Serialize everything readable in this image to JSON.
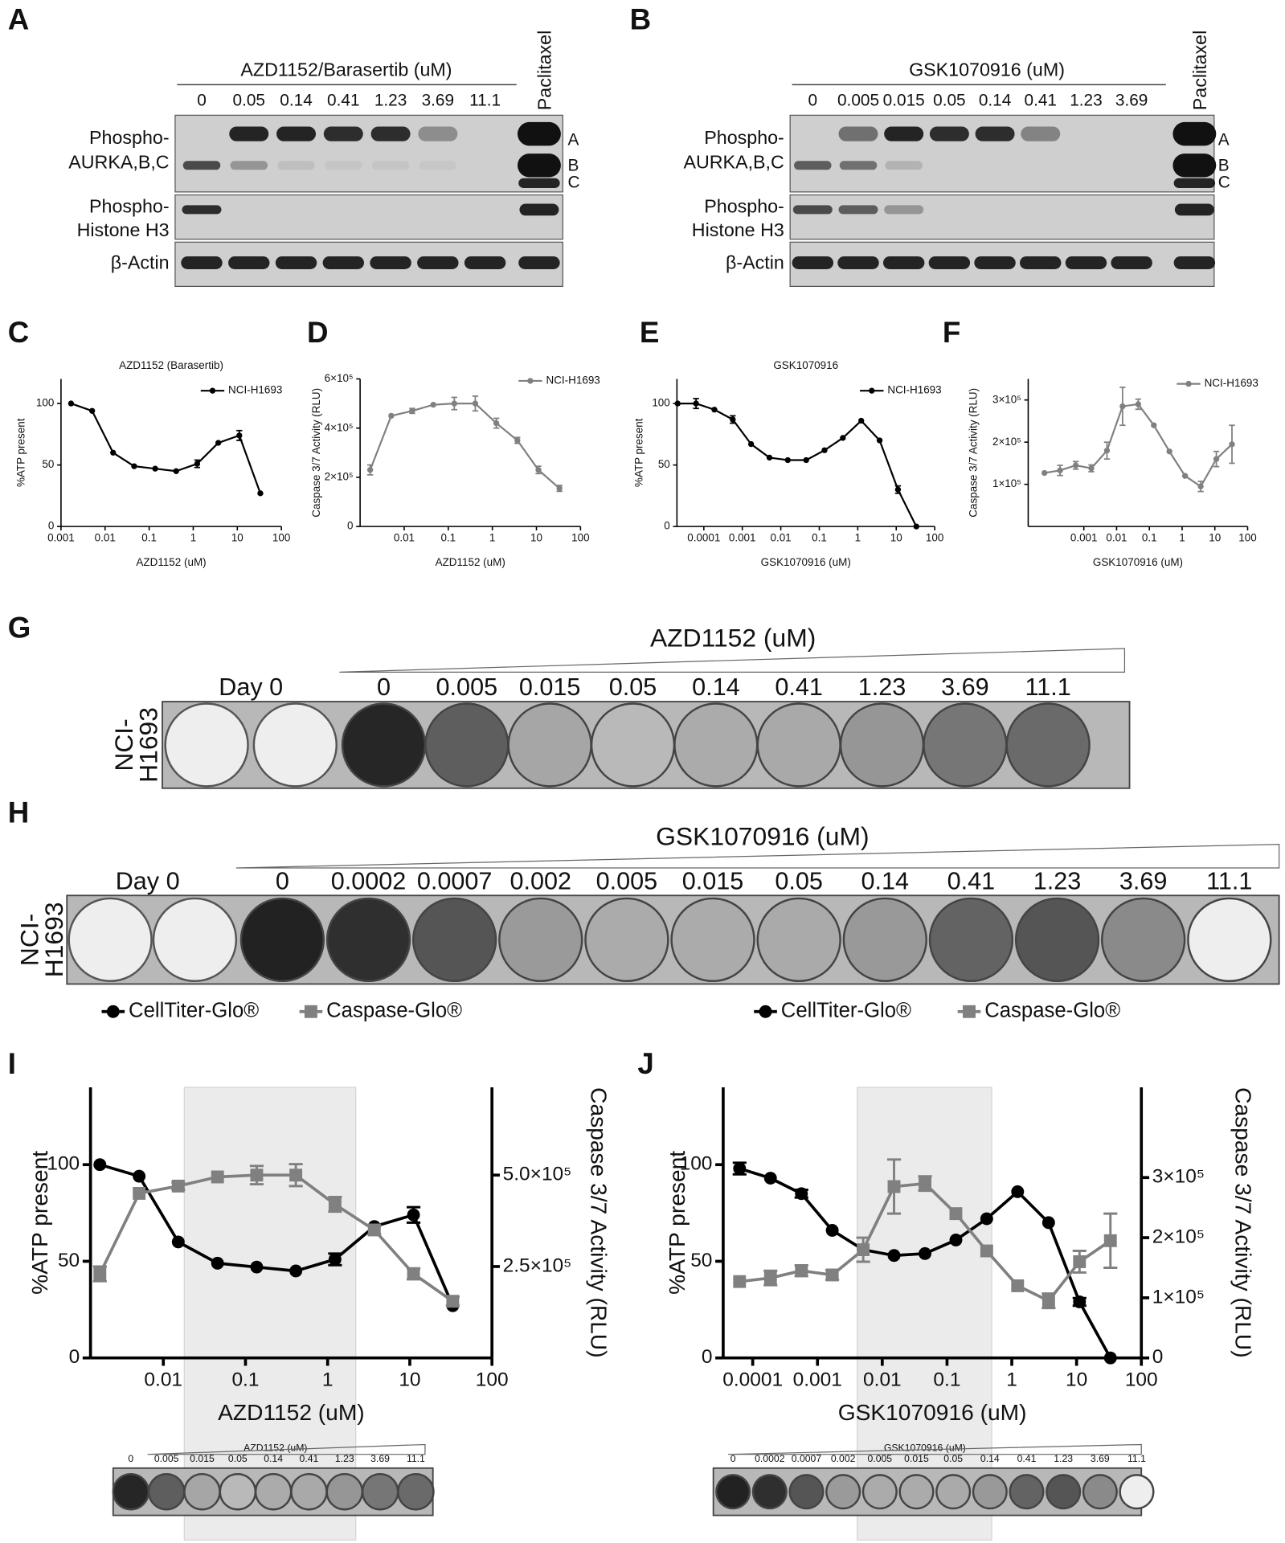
{
  "panel_labels": [
    "A",
    "B",
    "C",
    "D",
    "E",
    "F",
    "G",
    "H",
    "I",
    "J"
  ],
  "blot_a": {
    "title": "AZD1152/Barasertib (uM)",
    "lanes": [
      "0",
      "0.05",
      "0.14",
      "0.41",
      "1.23",
      "3.69",
      "11.1"
    ],
    "control": "Paclitaxel",
    "rows": [
      [
        "Phospho-",
        "AURKA,B,C"
      ],
      [
        "Phospho-",
        "Histone H3"
      ],
      [
        "β-Actin"
      ]
    ],
    "band_labels": [
      "A",
      "B",
      "C"
    ]
  },
  "blot_b": {
    "title": "GSK1070916 (uM)",
    "lanes": [
      "0",
      "0.005",
      "0.015",
      "0.05",
      "0.14",
      "0.41",
      "1.23",
      "3.69"
    ],
    "control": "Paclitaxel",
    "rows": [
      [
        "Phospho-",
        "AURKA,B,C"
      ],
      [
        "Phospho-",
        "Histone H3"
      ],
      [
        "β-Actin"
      ]
    ],
    "band_labels": [
      "A",
      "B",
      "C"
    ]
  },
  "chart_data": [
    {
      "type": "line",
      "title": "AZD1152 (Barasertib)",
      "x_label": "AZD1152 (uM)",
      "y_label": "%ATP present",
      "x_scale": "log",
      "xlim": [
        0.001,
        100
      ],
      "xticks": [
        0.001,
        0.01,
        0.1,
        1,
        10,
        100
      ],
      "ylim": [
        0,
        120
      ],
      "yticks": [
        0,
        50,
        100
      ],
      "legend": "upper right",
      "x": [
        0.00169,
        0.00508,
        0.0152,
        0.0457,
        0.137,
        0.41,
        1.23,
        3.7,
        11.1,
        33.3
      ],
      "series": [
        {
          "name": "NCI-H1693",
          "color": "#000000",
          "marker": "circle",
          "values": [
            100,
            94,
            60,
            49,
            47,
            45,
            51,
            68,
            74,
            27
          ],
          "errors": [
            null,
            null,
            null,
            null,
            null,
            null,
            3,
            null,
            4,
            null
          ]
        }
      ]
    },
    {
      "type": "line",
      "x_label": "AZD1152 (uM)",
      "y_label": "Caspase 3/7 Activity (RLU)",
      "x_scale": "log",
      "xlim": [
        0.001,
        100
      ],
      "xticks": [
        0.01,
        0.1,
        1,
        10,
        100
      ],
      "ylim": [
        0,
        600000
      ],
      "yticks": [
        0,
        {
          "value": 200000,
          "label": "2×10⁵"
        },
        {
          "value": 400000,
          "label": "4×10⁵"
        },
        {
          "value": 600000,
          "label": "6×10⁵"
        }
      ],
      "legend": "upper right",
      "x": [
        0.00169,
        0.00508,
        0.0152,
        0.0457,
        0.137,
        0.41,
        1.23,
        3.7,
        11.1,
        33.3
      ],
      "series": [
        {
          "name": "NCI-H1693",
          "color": "#808080",
          "marker": "circle",
          "values": [
            230000,
            450000,
            470000,
            495000,
            500000,
            500000,
            420000,
            350000,
            230000,
            155000
          ],
          "errors": [
            20000,
            null,
            10000,
            null,
            25000,
            30000,
            20000,
            12000,
            15000,
            12000
          ]
        }
      ]
    },
    {
      "type": "line",
      "title": "GSK1070916",
      "x_label": "GSK1070916 (uM)",
      "y_label": "%ATP present",
      "x_scale": "log",
      "xlim": [
        2e-05,
        100
      ],
      "xticks": [
        0.0001,
        0.001,
        0.01,
        0.1,
        1,
        10,
        100
      ],
      "ylim": [
        0,
        120
      ],
      "yticks": [
        0,
        50,
        100
      ],
      "legend": "upper right",
      "x": [
        2.09e-05,
        6.27e-05,
        0.000188,
        0.000565,
        0.00169,
        0.00508,
        0.0152,
        0.0457,
        0.137,
        0.41,
        1.23,
        3.7,
        11.1,
        33.3
      ],
      "series": [
        {
          "name": "NCI-H1693",
          "color": "#000000",
          "marker": "circle",
          "values": [
            100,
            100,
            95,
            87,
            67,
            56,
            54,
            54,
            62,
            72,
            86,
            70,
            30,
            0
          ],
          "errors": [
            null,
            4,
            null,
            3,
            null,
            null,
            null,
            null,
            null,
            null,
            null,
            null,
            3,
            null
          ]
        }
      ]
    },
    {
      "type": "line",
      "x_label": "GSK1070916 (uM)",
      "y_label": "Caspase 3/7 Activity (RLU)",
      "x_scale": "log",
      "xlim": [
        2e-05,
        100
      ],
      "xticks": [
        0.001,
        0.01,
        0.1,
        1,
        10,
        100
      ],
      "ylim": [
        0,
        350000
      ],
      "yticks": [
        {
          "value": 100000,
          "label": "1×10⁵"
        },
        {
          "value": 200000,
          "label": "2×10⁵"
        },
        {
          "value": 300000,
          "label": "3×10⁵"
        }
      ],
      "legend": "upper right",
      "x": [
        6.27e-05,
        0.000188,
        0.000565,
        0.00169,
        0.00508,
        0.0152,
        0.0457,
        0.137,
        0.41,
        1.23,
        3.7,
        11.1,
        33.3
      ],
      "series": [
        {
          "name": "NCI-H1693",
          "color": "#808080",
          "marker": "circle",
          "values": [
            127000,
            133000,
            145000,
            138000,
            180000,
            285000,
            290000,
            240000,
            178000,
            120000,
            95000,
            160000,
            195000
          ],
          "errors": [
            null,
            12000,
            9000,
            8000,
            20000,
            45000,
            12000,
            null,
            null,
            null,
            12000,
            18000,
            45000
          ]
        }
      ]
    },
    {
      "type": "line",
      "x_label": "AZD1152 (uM)",
      "y_label": "%ATP present",
      "y2_label": "Caspase 3/7 Activity (RLU)",
      "x_scale": "log",
      "xlim": [
        0.0013,
        100
      ],
      "xticks": [
        0.01,
        0.1,
        1,
        10,
        100
      ],
      "ylim": [
        0,
        140
      ],
      "yticks": [
        0,
        50,
        100
      ],
      "y2lim": [
        0,
        740000
      ],
      "y2ticks": [
        {
          "value": 250000,
          "label": "2.5×10⁵"
        },
        {
          "value": 500000,
          "label": "5.0×10⁵"
        }
      ],
      "highlight_x": [
        0.018,
        2.2
      ],
      "legend": "top",
      "x": [
        0.00169,
        0.00508,
        0.0152,
        0.0457,
        0.137,
        0.41,
        1.23,
        3.7,
        11.1,
        33.3
      ],
      "series": [
        {
          "name": "CellTiter-Glo®",
          "color": "#000000",
          "marker": "circle",
          "values": [
            100,
            94,
            60,
            49,
            47,
            45,
            51,
            68,
            74,
            27
          ],
          "errors": [
            null,
            null,
            null,
            null,
            null,
            null,
            3,
            null,
            4,
            null
          ]
        },
        {
          "name": "Caspase-Glo®",
          "color": "#808080",
          "marker": "square",
          "axis": "y2",
          "values": [
            230000,
            450000,
            470000,
            495000,
            500000,
            500000,
            420000,
            350000,
            230000,
            155000
          ],
          "errors": [
            20000,
            null,
            10000,
            null,
            25000,
            30000,
            20000,
            12000,
            15000,
            12000
          ]
        }
      ]
    },
    {
      "type": "line",
      "x_label": "GSK1070916 (uM)",
      "y_label": "%ATP present",
      "y2_label": "Caspase 3/7 Activity (RLU)",
      "x_scale": "log",
      "xlim": [
        3.5e-05,
        100
      ],
      "xticks": [
        0.0001,
        0.001,
        0.01,
        0.1,
        1,
        10,
        100
      ],
      "ylim": [
        0,
        140
      ],
      "yticks": [
        0,
        50,
        100
      ],
      "y2lim": [
        0,
        450000
      ],
      "y2ticks": [
        0,
        {
          "value": 100000,
          "label": "1×10⁵"
        },
        {
          "value": 200000,
          "label": "2×10⁵"
        },
        {
          "value": 300000,
          "label": "3×10⁵"
        }
      ],
      "highlight_x": [
        0.0041,
        0.49
      ],
      "legend": "top",
      "x": [
        6.27e-05,
        0.000188,
        0.000565,
        0.00169,
        0.00508,
        0.0152,
        0.0457,
        0.137,
        0.41,
        1.23,
        3.7,
        11.1,
        33.3
      ],
      "series": [
        {
          "name": "CellTiter-Glo®",
          "color": "#000000",
          "marker": "circle",
          "values": [
            98,
            93,
            85,
            66,
            56,
            53,
            54,
            61,
            72,
            86,
            70,
            29,
            0
          ],
          "errors": [
            3,
            null,
            2,
            null,
            null,
            null,
            null,
            null,
            null,
            null,
            null,
            2,
            null
          ]
        },
        {
          "name": "Caspase-Glo®",
          "color": "#808080",
          "marker": "square",
          "axis": "y2",
          "values": [
            127000,
            133000,
            145000,
            138000,
            180000,
            285000,
            290000,
            240000,
            178000,
            120000,
            95000,
            160000,
            195000
          ],
          "errors": [
            null,
            12000,
            9000,
            8000,
            20000,
            45000,
            12000,
            null,
            null,
            null,
            12000,
            18000,
            45000
          ]
        }
      ]
    }
  ],
  "plate_g": {
    "title": "AZD1152 (uM)",
    "day0": "Day 0",
    "cell_line": [
      "NCI-",
      "H1693"
    ],
    "doses": [
      "0",
      "0.005",
      "0.015",
      "0.05",
      "0.14",
      "0.41",
      "1.23",
      "3.69",
      "11.1"
    ]
  },
  "plate_h": {
    "title": "GSK1070916 (uM)",
    "day0": "Day 0",
    "cell_line": [
      "NCI-",
      "H1693"
    ],
    "doses": [
      "0",
      "0.0002",
      "0.0007",
      "0.002",
      "0.005",
      "0.015",
      "0.05",
      "0.14",
      "0.41",
      "1.23",
      "3.69",
      "11.1"
    ]
  },
  "inset_i": {
    "title": "AZD1152 (uM)",
    "doses": [
      "0",
      "0.005",
      "0.015",
      "0.05",
      "0.14",
      "0.41",
      "1.23",
      "3.69",
      "11.1"
    ]
  },
  "inset_j": {
    "title": "GSK1070916 (uM)",
    "doses": [
      "0",
      "0.0002",
      "0.0007",
      "0.002",
      "0.005",
      "0.015",
      "0.05",
      "0.14",
      "0.41",
      "1.23",
      "3.69",
      "11.1"
    ]
  }
}
